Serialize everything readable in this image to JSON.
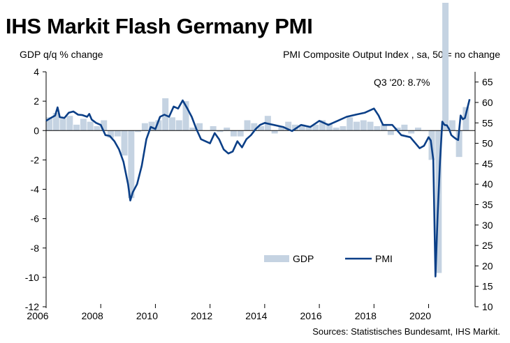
{
  "title": "IHS Markit Flash Germany PMI",
  "source": "Sources: Statistisches Bundesamt, IHS Markit.",
  "colors": {
    "gdp": "#c5d3e2",
    "pmi": "#0b3f87",
    "axis": "#000000"
  },
  "chart_data": {
    "type": "bar+line",
    "ylabel_left": "GDP q/q % change",
    "ylabel_right": "PMI Composite Output Index , sa, 50 = no change",
    "annotation": "Q3 '20: 8.7%",
    "xlim": [
      2006,
      2021.7
    ],
    "ylim_left": [
      -12,
      4
    ],
    "ylim_right": [
      10,
      67.5
    ],
    "x_ticks": [
      2006,
      2008,
      2010,
      2012,
      2014,
      2016,
      2018,
      2020
    ],
    "y_ticks_left": [
      4,
      2,
      0,
      -2,
      -4,
      -6,
      -8,
      -10,
      -12
    ],
    "y_ticks_right": [
      65,
      60,
      55,
      50,
      45,
      40,
      35,
      30,
      25,
      20,
      15,
      10
    ],
    "legend": {
      "placement": "bottom-center",
      "entries": [
        "GDP",
        "PMI"
      ]
    },
    "series": [
      {
        "name": "GDP",
        "kind": "bar",
        "x": [
          2006.0,
          2006.25,
          2006.5,
          2006.75,
          2007.0,
          2007.25,
          2007.5,
          2007.75,
          2008.0,
          2008.25,
          2008.5,
          2008.75,
          2009.0,
          2009.25,
          2009.5,
          2009.75,
          2010.0,
          2010.25,
          2010.5,
          2010.75,
          2011.0,
          2011.25,
          2011.5,
          2011.75,
          2012.0,
          2012.25,
          2012.5,
          2012.75,
          2013.0,
          2013.25,
          2013.5,
          2013.75,
          2014.0,
          2014.25,
          2014.5,
          2014.75,
          2015.0,
          2015.25,
          2015.5,
          2015.75,
          2016.0,
          2016.25,
          2016.5,
          2016.75,
          2017.0,
          2017.25,
          2017.5,
          2017.75,
          2018.0,
          2018.25,
          2018.5,
          2018.75,
          2019.0,
          2019.25,
          2019.5,
          2019.75,
          2020.0,
          2020.25,
          2020.5,
          2020.75,
          2021.0,
          2021.25
        ],
        "values": [
          0.9,
          1.2,
          0.8,
          1.0,
          0.4,
          0.8,
          0.6,
          0.3,
          0.7,
          -0.5,
          -0.4,
          -1.7,
          -4.6,
          -0.1,
          0.5,
          0.6,
          0.7,
          2.2,
          0.9,
          0.7,
          2.0,
          0.2,
          0.5,
          0.0,
          0.3,
          -0.1,
          0.2,
          -0.4,
          -0.4,
          0.7,
          0.5,
          0.3,
          1.0,
          -0.2,
          0.3,
          0.6,
          0.4,
          0.4,
          0.3,
          0.4,
          0.7,
          0.5,
          0.2,
          0.3,
          0.9,
          0.6,
          0.7,
          0.6,
          0.3,
          0.4,
          -0.3,
          0.2,
          0.4,
          -0.2,
          0.2,
          0.0,
          -2.0,
          -9.7,
          8.7,
          0.7,
          -1.8,
          1.6
        ]
      },
      {
        "name": "PMI",
        "kind": "line",
        "x": [
          2006.0,
          2006.17,
          2006.33,
          2006.42,
          2006.5,
          2006.67,
          2006.83,
          2007.0,
          2007.17,
          2007.33,
          2007.5,
          2007.58,
          2007.67,
          2007.83,
          2008.0,
          2008.17,
          2008.33,
          2008.5,
          2008.67,
          2008.83,
          2009.0,
          2009.08,
          2009.17,
          2009.33,
          2009.5,
          2009.67,
          2009.83,
          2010.0,
          2010.17,
          2010.33,
          2010.5,
          2010.67,
          2010.83,
          2011.0,
          2011.17,
          2011.33,
          2011.5,
          2011.67,
          2011.83,
          2012.0,
          2012.17,
          2012.33,
          2012.5,
          2012.67,
          2012.83,
          2013.0,
          2013.17,
          2013.33,
          2013.5,
          2013.67,
          2013.83,
          2014.0,
          2014.33,
          2014.67,
          2015.0,
          2015.33,
          2015.67,
          2016.0,
          2016.33,
          2016.67,
          2017.0,
          2017.33,
          2017.67,
          2018.0,
          2018.17,
          2018.33,
          2018.67,
          2019.0,
          2019.33,
          2019.67,
          2019.83,
          2020.0,
          2020.08,
          2020.17,
          2020.25,
          2020.33,
          2020.42,
          2020.5,
          2020.58,
          2020.67,
          2020.75,
          2020.83,
          2020.92,
          2021.0,
          2021.08,
          2021.17,
          2021.25,
          2021.33,
          2021.5
        ],
        "values": [
          55.5,
          56.2,
          56.8,
          58.8,
          56.4,
          56.2,
          57.5,
          57.8,
          57.0,
          56.9,
          56.5,
          57.2,
          55.8,
          55.0,
          54.5,
          52.0,
          51.8,
          50.5,
          48.5,
          45.5,
          40.0,
          36.0,
          38.0,
          40.0,
          44.5,
          51.0,
          54.0,
          53.5,
          56.5,
          57.0,
          56.5,
          59.0,
          58.5,
          60.5,
          58.5,
          56.5,
          53.5,
          51.0,
          50.5,
          50.0,
          52.5,
          51.0,
          48.5,
          47.5,
          48.0,
          50.5,
          49.0,
          51.0,
          52.0,
          53.5,
          54.5,
          55.0,
          54.5,
          54.0,
          53.0,
          54.5,
          54.0,
          55.5,
          54.5,
          55.5,
          56.5,
          57.0,
          57.5,
          58.5,
          56.8,
          54.5,
          54.5,
          52.0,
          51.5,
          48.8,
          49.4,
          51.5,
          50.7,
          46.0,
          17.4,
          32.3,
          45.8,
          55.3,
          54.5,
          54.4,
          53.5,
          52.0,
          51.5,
          51.1,
          50.8,
          56.8,
          55.9,
          56.2,
          60.8
        ]
      }
    ]
  }
}
